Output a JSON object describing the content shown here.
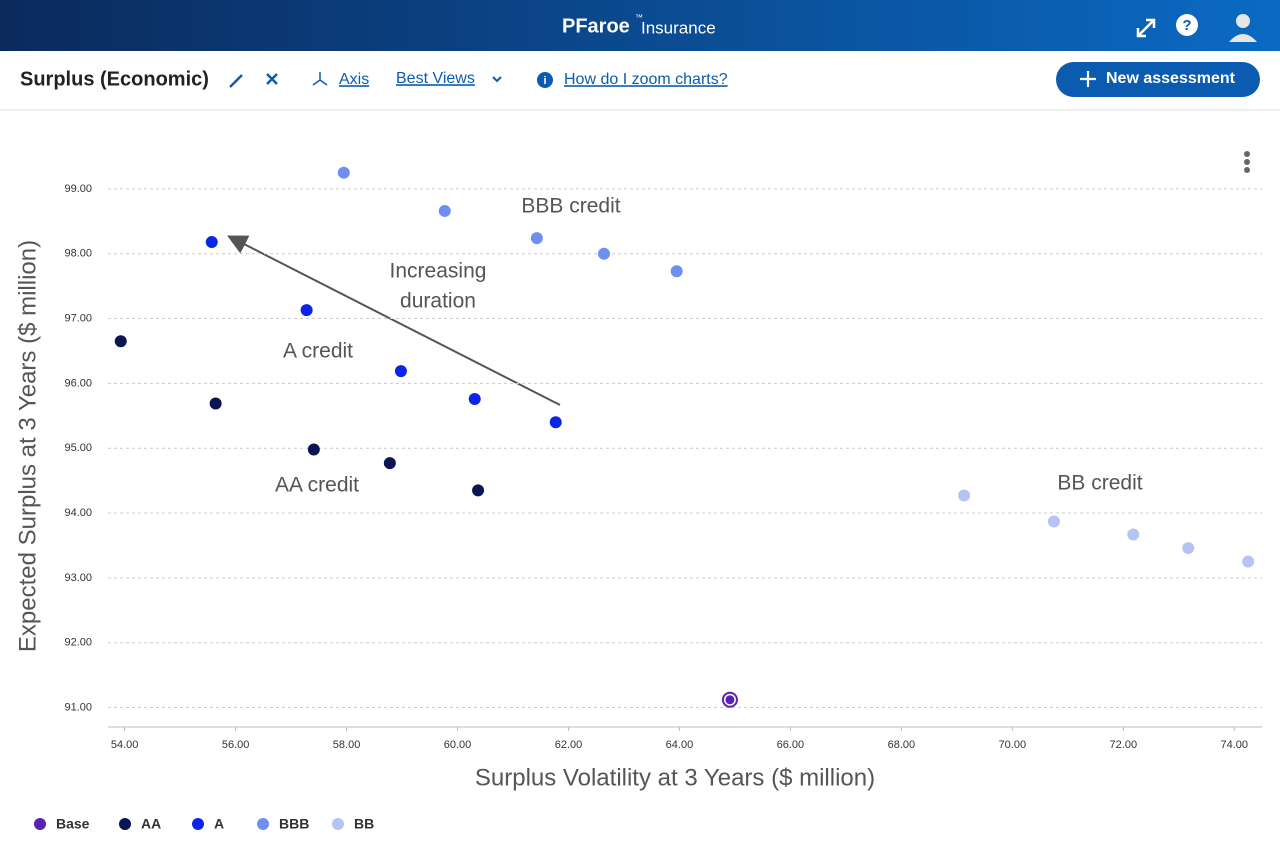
{
  "header": {
    "brand": "PFaroe",
    "trademark": "™",
    "product": "Insurance"
  },
  "toolbar": {
    "title": "Surplus (Economic)",
    "axis": "Axis",
    "best_views": "Best Views",
    "help": "How do I zoom charts?",
    "new_assessment": "New assessment"
  },
  "chart_data": {
    "type": "scatter",
    "x_label": "Surplus Volatility at 3 Years ($ million)",
    "y_label": "Expected Surplus at 3 Years ($ million)",
    "xlim": [
      53.7,
      74.5
    ],
    "ylim": [
      90.7,
      99.6
    ],
    "xticks": [
      {
        "value": 54,
        "label": "54.00"
      },
      {
        "value": 56,
        "label": "56.00"
      },
      {
        "value": 58,
        "label": "58.00"
      },
      {
        "value": 60,
        "label": "60.00"
      },
      {
        "value": 62,
        "label": "62.00"
      },
      {
        "value": 64,
        "label": "64.00"
      },
      {
        "value": 66,
        "label": "66.00"
      },
      {
        "value": 68,
        "label": "68.00"
      },
      {
        "value": 70,
        "label": "70.00"
      },
      {
        "value": 72,
        "label": "72.00"
      },
      {
        "value": 74,
        "label": "74.00"
      }
    ],
    "yticks": [
      {
        "value": 91,
        "label": "91.00"
      },
      {
        "value": 92,
        "label": "92.00"
      },
      {
        "value": 93,
        "label": "93.00"
      },
      {
        "value": 94,
        "label": "94.00"
      },
      {
        "value": 95,
        "label": "95.00"
      },
      {
        "value": 96,
        "label": "96.00"
      },
      {
        "value": 97,
        "label": "97.00"
      },
      {
        "value": 98,
        "label": "98.00"
      },
      {
        "value": 99,
        "label": "99.00"
      }
    ],
    "grid": true,
    "series": [
      {
        "name": "Base",
        "color": "#5b21b6",
        "x": [
          64.91
        ],
        "values": [
          91.12
        ]
      },
      {
        "name": "AA",
        "color": "#0a1551",
        "x": [
          53.93,
          55.64,
          57.41,
          58.78,
          60.37
        ],
        "values": [
          96.65,
          95.69,
          94.98,
          94.77,
          94.35
        ]
      },
      {
        "name": "A",
        "color": "#0a24e8",
        "x": [
          55.57,
          57.28,
          58.98,
          60.31,
          61.77
        ],
        "values": [
          98.18,
          97.13,
          96.19,
          95.76,
          95.4
        ]
      },
      {
        "name": "BBB",
        "color": "#6f8ff0",
        "x": [
          57.95,
          59.77,
          61.43,
          62.64,
          63.95
        ],
        "values": [
          99.25,
          98.66,
          98.24,
          98.0,
          97.73
        ]
      },
      {
        "name": "BB",
        "color": "#b6c4f5",
        "x": [
          69.13,
          70.75,
          72.18,
          73.17,
          74.25
        ],
        "values": [
          94.27,
          93.87,
          93.67,
          93.46,
          93.25
        ]
      }
    ],
    "annotations": [
      "BBB credit",
      "Increasing",
      "duration",
      "A credit",
      "AA credit",
      "BB credit"
    ]
  }
}
